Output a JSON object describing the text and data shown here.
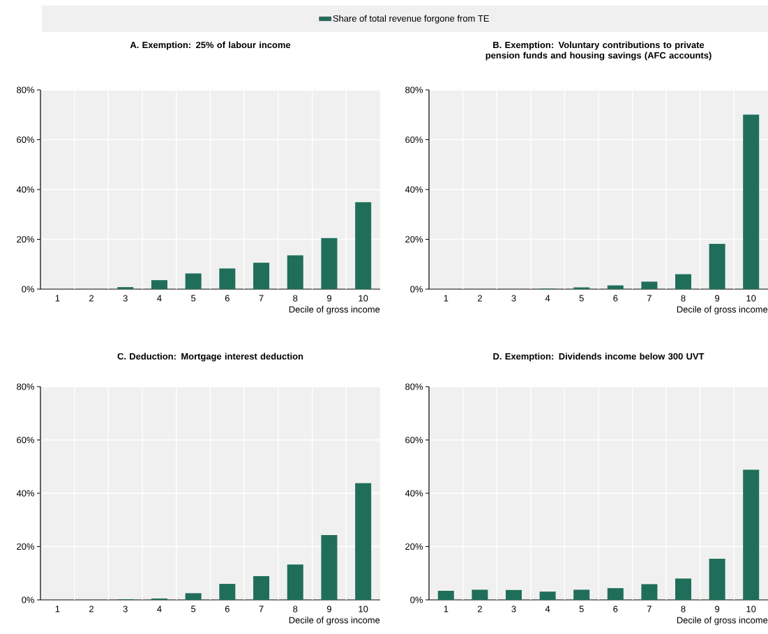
{
  "chart_data": [
    {
      "type": "bar",
      "title": "A. Exemption: 25% of labour income",
      "xlabel": "Decile of gross income",
      "categories": [
        "1",
        "2",
        "3",
        "4",
        "5",
        "6",
        "7",
        "8",
        "9",
        "10"
      ],
      "series": [
        {
          "name": "Share of total revenue forgone from TE",
          "color": "#1f6e5a",
          "values": [
            0,
            0,
            0.8,
            3.6,
            6.3,
            8.3,
            10.6,
            13.6,
            20.5,
            34.9
          ]
        }
      ],
      "ylim": [
        0,
        80
      ],
      "yticks": [
        {
          "value": 0,
          "label": "0%"
        },
        {
          "value": 20,
          "label": "20%"
        },
        {
          "value": 40,
          "label": "40%"
        },
        {
          "value": 60,
          "label": "60%"
        },
        {
          "value": 80,
          "label": "80%"
        }
      ],
      "grid": true,
      "legend": "top"
    },
    {
      "type": "bar",
      "title": "B. Exemption: Voluntary contributions to private pension funds and housing savings (AFC accounts)",
      "xlabel": "Decile of gross income",
      "categories": [
        "1",
        "2",
        "3",
        "4",
        "5",
        "6",
        "7",
        "8",
        "9",
        "10"
      ],
      "series": [
        {
          "color": "#1f6e5a",
          "values": [
            0,
            0,
            0,
            0.2,
            0.7,
            1.5,
            3.0,
            6.0,
            18.2,
            70.1
          ]
        }
      ],
      "ylim": [
        0,
        80
      ],
      "yticks": [
        {
          "value": 0,
          "label": "0%"
        },
        {
          "value": 20,
          "label": "20%"
        },
        {
          "value": 40,
          "label": "40%"
        },
        {
          "value": 60,
          "label": "60%"
        },
        {
          "value": 80,
          "label": "80%"
        }
      ],
      "grid": true
    },
    {
      "type": "bar",
      "title": "C. Deduction: Mortgage interest deduction",
      "xlabel": "Decile of gross income",
      "categories": [
        "1",
        "2",
        "3",
        "4",
        "5",
        "6",
        "7",
        "8",
        "9",
        "10"
      ],
      "series": [
        {
          "color": "#1f6e5a",
          "values": [
            0,
            0,
            0.2,
            0.5,
            2.5,
            6.0,
            8.9,
            13.3,
            24.3,
            43.8
          ]
        }
      ],
      "ylim": [
        0,
        80
      ],
      "yticks": [
        {
          "value": 0,
          "label": "0%"
        },
        {
          "value": 20,
          "label": "20%"
        },
        {
          "value": 40,
          "label": "40%"
        },
        {
          "value": 60,
          "label": "60%"
        },
        {
          "value": 80,
          "label": "80%"
        }
      ],
      "grid": true
    },
    {
      "type": "bar",
      "title": "D. Exemption: Dividends income below 300 UVT",
      "xlabel": "Decile of gross income",
      "categories": [
        "1",
        "2",
        "3",
        "4",
        "5",
        "6",
        "7",
        "8",
        "9",
        "10"
      ],
      "series": [
        {
          "color": "#1f6e5a",
          "values": [
            3.4,
            3.8,
            3.7,
            3.1,
            3.8,
            4.4,
            5.9,
            8.0,
            15.4,
            48.8
          ]
        }
      ],
      "ylim": [
        0,
        80
      ],
      "yticks": [
        {
          "value": 0,
          "label": "0%"
        },
        {
          "value": 20,
          "label": "20%"
        },
        {
          "value": 40,
          "label": "40%"
        },
        {
          "value": 60,
          "label": "60%"
        },
        {
          "value": 80,
          "label": "80%"
        }
      ],
      "grid": true
    }
  ]
}
